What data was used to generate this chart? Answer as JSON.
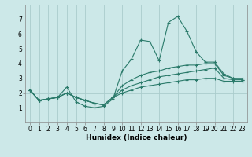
{
  "title": "",
  "xlabel": "Humidex (Indice chaleur)",
  "ylabel": "",
  "xlim": [
    -0.5,
    23.5
  ],
  "ylim": [
    0,
    8
  ],
  "xticks": [
    0,
    1,
    2,
    3,
    4,
    5,
    6,
    7,
    8,
    9,
    10,
    11,
    12,
    13,
    14,
    15,
    16,
    17,
    18,
    19,
    20,
    21,
    22,
    23
  ],
  "yticks": [
    1,
    2,
    3,
    4,
    5,
    6,
    7
  ],
  "background_color": "#cce8e8",
  "grid_color": "#aacccc",
  "line_color": "#2a7a6a",
  "lines": [
    [
      2.2,
      1.5,
      1.6,
      1.7,
      2.4,
      1.4,
      1.1,
      1.0,
      1.1,
      1.6,
      3.5,
      4.3,
      5.6,
      5.5,
      4.2,
      6.8,
      7.2,
      6.2,
      4.8,
      4.1,
      4.1,
      3.3,
      3.0,
      3.0
    ],
    [
      2.2,
      1.5,
      1.6,
      1.7,
      2.0,
      1.7,
      1.5,
      1.3,
      1.2,
      1.7,
      2.5,
      2.9,
      3.2,
      3.4,
      3.5,
      3.7,
      3.8,
      3.9,
      3.9,
      4.0,
      4.0,
      3.2,
      3.0,
      2.9
    ],
    [
      2.2,
      1.5,
      1.6,
      1.7,
      2.0,
      1.7,
      1.5,
      1.3,
      1.2,
      1.7,
      2.2,
      2.5,
      2.7,
      2.9,
      3.1,
      3.2,
      3.3,
      3.4,
      3.5,
      3.6,
      3.7,
      3.0,
      2.9,
      2.9
    ],
    [
      2.2,
      1.5,
      1.6,
      1.7,
      2.0,
      1.7,
      1.5,
      1.3,
      1.2,
      1.7,
      2.0,
      2.2,
      2.4,
      2.5,
      2.6,
      2.7,
      2.8,
      2.9,
      2.9,
      3.0,
      3.0,
      2.8,
      2.8,
      2.8
    ]
  ],
  "xlabel_fontsize": 6.5,
  "xlabel_fontweight": "bold",
  "tick_fontsize": 5.5
}
